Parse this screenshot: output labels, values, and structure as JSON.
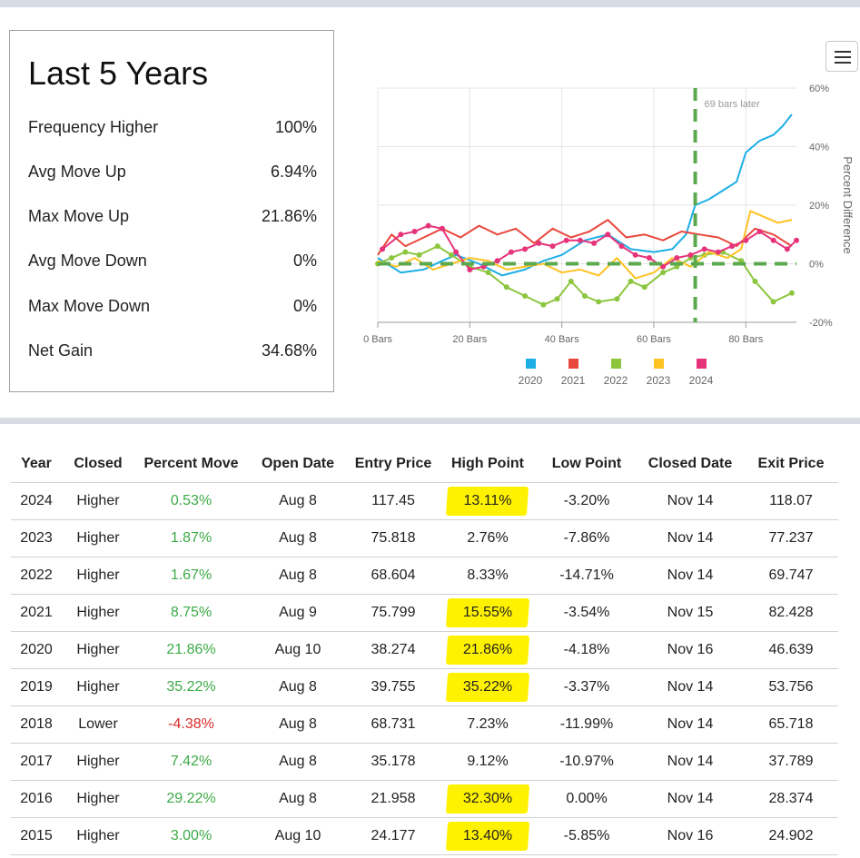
{
  "stats": {
    "title": "Last 5 Years",
    "rows": [
      {
        "label": "Frequency Higher",
        "value": "100%"
      },
      {
        "label": "Avg Move Up",
        "value": "6.94%"
      },
      {
        "label": "Max Move Up",
        "value": "21.86%"
      },
      {
        "label": "Avg Move Down",
        "value": "0%"
      },
      {
        "label": "Max Move Down",
        "value": "0%"
      },
      {
        "label": "Net Gain",
        "value": "34.68%"
      }
    ]
  },
  "chart_data": {
    "type": "line",
    "title": "",
    "xlabel": "",
    "ylabel": "Percent Difference",
    "xlim": [
      0,
      91
    ],
    "ylim": [
      -20,
      60
    ],
    "x_ticks": [
      0,
      20,
      40,
      60,
      80
    ],
    "x_tick_labels": [
      "0 Bars",
      "20 Bars",
      "40 Bars",
      "60 Bars",
      "80 Bars"
    ],
    "y_ticks": [
      -20,
      0,
      20,
      40,
      60
    ],
    "y_tick_labels": [
      "-20%",
      "0%",
      "20%",
      "40%",
      "60%"
    ],
    "grid": true,
    "legend_position": "bottom",
    "annotation": {
      "x": 69,
      "text": "69 bars later"
    },
    "series": [
      {
        "name": "2020",
        "color": "#1eaee6",
        "markers": false,
        "x": [
          0,
          5,
          10,
          14,
          17,
          22,
          27,
          32,
          36,
          40,
          45,
          50,
          55,
          60,
          64,
          67,
          69,
          72,
          75,
          78,
          80,
          83,
          86,
          88,
          90
        ],
        "y": [
          2,
          -3,
          -2,
          1,
          3,
          0,
          -4,
          -2,
          1,
          3,
          8,
          10,
          5,
          4,
          5,
          10,
          20,
          22,
          25,
          28,
          38,
          42,
          44,
          47,
          51
        ]
      },
      {
        "name": "2021",
        "color": "#e8473c",
        "markers": false,
        "x": [
          0,
          3,
          6,
          10,
          14,
          18,
          22,
          26,
          30,
          34,
          38,
          42,
          46,
          50,
          54,
          58,
          62,
          66,
          70,
          74,
          78,
          82,
          86,
          90
        ],
        "y": [
          3,
          10,
          6,
          9,
          12,
          9,
          13,
          10,
          12,
          7,
          12,
          9,
          11,
          15,
          9,
          10,
          8,
          11,
          10,
          9,
          6,
          12,
          10,
          6
        ]
      },
      {
        "name": "2022",
        "color": "#8cc63f",
        "markers": true,
        "x": [
          0,
          3,
          6,
          9,
          13,
          16,
          20,
          24,
          28,
          32,
          36,
          39,
          42,
          45,
          48,
          52,
          55,
          58,
          62,
          65,
          68,
          71,
          75,
          79,
          82,
          86,
          90
        ],
        "y": [
          0,
          2,
          4,
          3,
          6,
          3,
          -1,
          -3,
          -8,
          -11,
          -14,
          -12,
          -6,
          -11,
          -13,
          -12,
          -6,
          -8,
          -3,
          -1,
          2,
          3,
          4,
          1,
          -6,
          -13,
          -10
        ]
      },
      {
        "name": "2023",
        "color": "#ffc223",
        "markers": false,
        "x": [
          0,
          4,
          8,
          12,
          16,
          20,
          24,
          28,
          32,
          36,
          40,
          44,
          48,
          52,
          56,
          60,
          64,
          68,
          72,
          76,
          79,
          81,
          84,
          87,
          90
        ],
        "y": [
          1,
          -1,
          2,
          -2,
          0,
          2,
          1,
          -2,
          -1,
          0,
          -3,
          -2,
          -4,
          2,
          -5,
          -3,
          2,
          -1,
          4,
          2,
          5,
          18,
          16,
          14,
          15
        ]
      },
      {
        "name": "2024",
        "color": "#e6337a",
        "markers": true,
        "x": [
          1,
          5,
          8,
          11,
          14,
          17,
          20,
          23,
          26,
          29,
          32,
          35,
          38,
          41,
          44,
          47,
          50,
          53,
          56,
          59,
          62,
          65,
          68,
          71,
          74,
          77,
          80,
          83,
          86,
          89,
          91
        ],
        "y": [
          5,
          10,
          11,
          13,
          12,
          4,
          -2,
          -1,
          1,
          4,
          5,
          7,
          6,
          8,
          8,
          7,
          10,
          6,
          3,
          2,
          -1,
          2,
          3,
          5,
          4,
          6,
          8,
          11,
          8,
          5,
          8
        ]
      }
    ]
  },
  "table": {
    "headers": [
      "Year",
      "Closed",
      "Percent Move",
      "Open Date",
      "Entry Price",
      "High Point",
      "Low Point",
      "Closed Date",
      "Exit Price"
    ],
    "rows": [
      {
        "year": "2024",
        "closed": "Higher",
        "move": "0.53%",
        "dir": "up",
        "open": "Aug 8",
        "entry": "117.45",
        "high": "13.11%",
        "hl": true,
        "low": "-3.20%",
        "close": "Nov 14",
        "exit": "118.07"
      },
      {
        "year": "2023",
        "closed": "Higher",
        "move": "1.87%",
        "dir": "up",
        "open": "Aug 8",
        "entry": "75.818",
        "high": "2.76%",
        "hl": false,
        "low": "-7.86%",
        "close": "Nov 14",
        "exit": "77.237"
      },
      {
        "year": "2022",
        "closed": "Higher",
        "move": "1.67%",
        "dir": "up",
        "open": "Aug 8",
        "entry": "68.604",
        "high": "8.33%",
        "hl": false,
        "low": "-14.71%",
        "close": "Nov 14",
        "exit": "69.747"
      },
      {
        "year": "2021",
        "closed": "Higher",
        "move": "8.75%",
        "dir": "up",
        "open": "Aug 9",
        "entry": "75.799",
        "high": "15.55%",
        "hl": true,
        "low": "-3.54%",
        "close": "Nov 15",
        "exit": "82.428"
      },
      {
        "year": "2020",
        "closed": "Higher",
        "move": "21.86%",
        "dir": "up",
        "open": "Aug 10",
        "entry": "38.274",
        "high": "21.86%",
        "hl": true,
        "low": "-4.18%",
        "close": "Nov 16",
        "exit": "46.639"
      },
      {
        "year": "2019",
        "closed": "Higher",
        "move": "35.22%",
        "dir": "up",
        "open": "Aug 8",
        "entry": "39.755",
        "high": "35.22%",
        "hl": true,
        "low": "-3.37%",
        "close": "Nov 14",
        "exit": "53.756"
      },
      {
        "year": "2018",
        "closed": "Lower",
        "move": "-4.38%",
        "dir": "down",
        "open": "Aug 8",
        "entry": "68.731",
        "high": "7.23%",
        "hl": false,
        "low": "-11.99%",
        "close": "Nov 14",
        "exit": "65.718"
      },
      {
        "year": "2017",
        "closed": "Higher",
        "move": "7.42%",
        "dir": "up",
        "open": "Aug 8",
        "entry": "35.178",
        "high": "9.12%",
        "hl": false,
        "low": "-10.97%",
        "close": "Nov 14",
        "exit": "37.789"
      },
      {
        "year": "2016",
        "closed": "Higher",
        "move": "29.22%",
        "dir": "up",
        "open": "Aug 8",
        "entry": "21.958",
        "high": "32.30%",
        "hl": true,
        "low": "0.00%",
        "close": "Nov 14",
        "exit": "28.374"
      },
      {
        "year": "2015",
        "closed": "Higher",
        "move": "3.00%",
        "dir": "up",
        "open": "Aug 10",
        "entry": "24.177",
        "high": "13.40%",
        "hl": true,
        "low": "-5.85%",
        "close": "Nov 16",
        "exit": "24.902"
      }
    ]
  }
}
